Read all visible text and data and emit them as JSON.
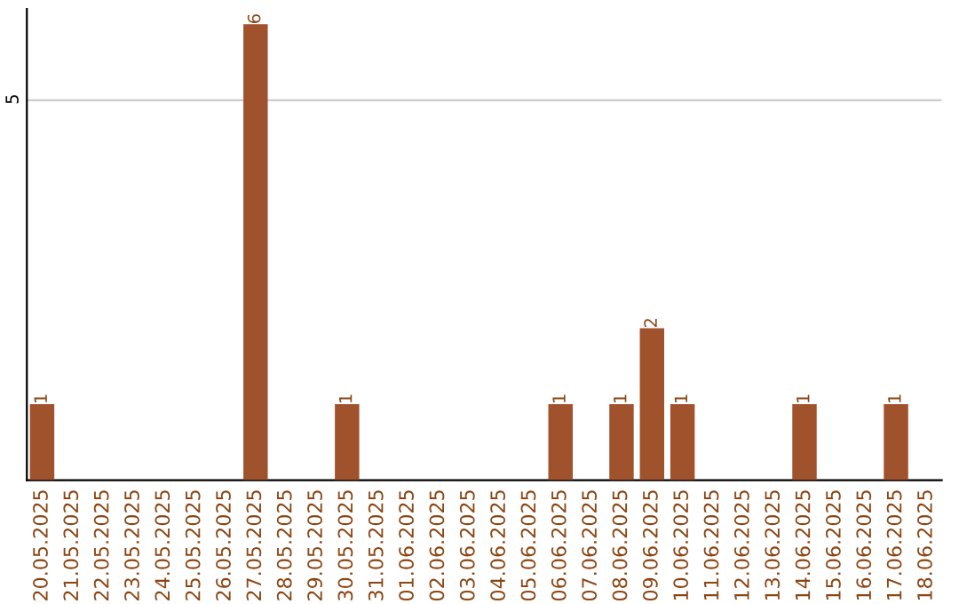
{
  "chart_data": {
    "type": "bar",
    "categories": [
      "20.05.2025",
      "21.05.2025",
      "22.05.2025",
      "23.05.2025",
      "24.05.2025",
      "25.05.2025",
      "26.05.2025",
      "27.05.2025",
      "28.05.2025",
      "29.05.2025",
      "30.05.2025",
      "31.05.2025",
      "01.06.2025",
      "02.06.2025",
      "03.06.2025",
      "04.06.2025",
      "05.06.2025",
      "06.06.2025",
      "07.06.2025",
      "08.06.2025",
      "09.06.2025",
      "10.06.2025",
      "11.06.2025",
      "12.06.2025",
      "13.06.2025",
      "14.06.2025",
      "15.06.2025",
      "16.06.2025",
      "17.06.2025",
      "18.06.2025"
    ],
    "values": [
      1,
      0,
      0,
      0,
      0,
      0,
      0,
      6,
      0,
      0,
      1,
      0,
      0,
      0,
      0,
      0,
      0,
      1,
      0,
      1,
      2,
      1,
      0,
      0,
      0,
      1,
      0,
      0,
      1,
      0
    ],
    "value_labels": [
      "1",
      null,
      null,
      null,
      null,
      null,
      null,
      "6",
      null,
      null,
      "1",
      null,
      null,
      null,
      null,
      null,
      null,
      "1",
      null,
      "1",
      "2",
      "1",
      null,
      null,
      null,
      "1",
      null,
      null,
      "1",
      null
    ],
    "color": "#a0522d",
    "ylim": [
      0,
      6.2
    ],
    "yticks": [
      5
    ],
    "grid": "y"
  }
}
